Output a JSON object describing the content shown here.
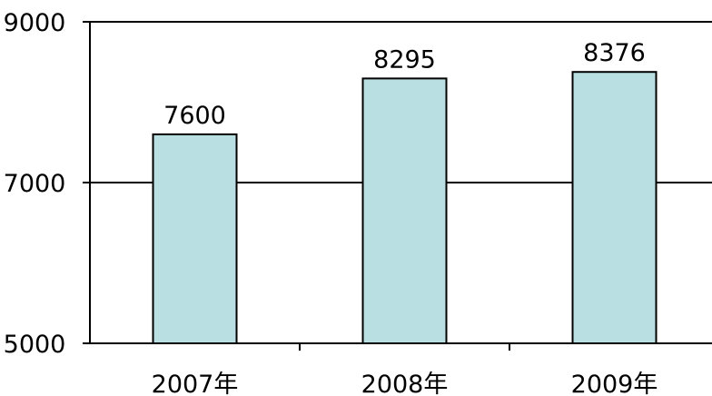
{
  "chart_data": {
    "type": "bar",
    "categories": [
      "2007年",
      "2008年",
      "2009年"
    ],
    "values": [
      7600,
      8295,
      8376
    ],
    "data_labels": [
      "7600",
      "8295",
      "8376"
    ],
    "ylim": [
      5000,
      9000
    ],
    "y_ticks": [
      5000,
      7000,
      9000
    ],
    "y_tick_labels": [
      "5000",
      "7000",
      "9000"
    ],
    "grid": true,
    "legend": "none",
    "bar_color": "#b9dfe2",
    "bar_edge_color": "#000000",
    "axis_color": "#000000"
  }
}
